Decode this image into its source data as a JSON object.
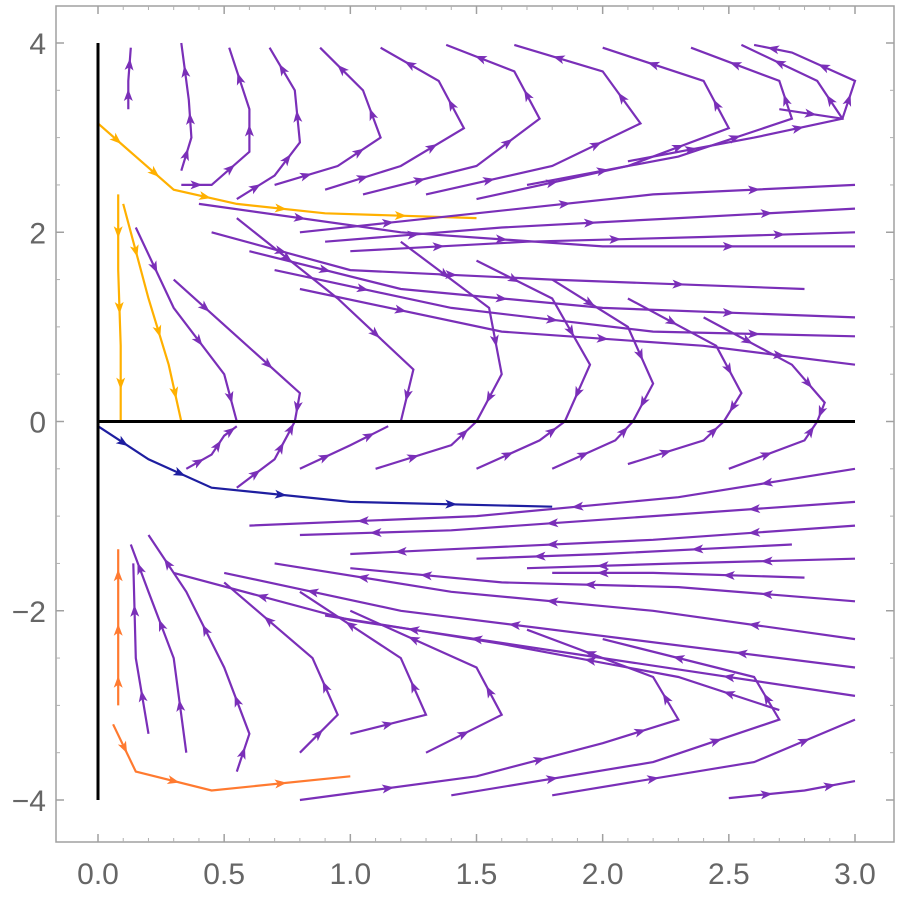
{
  "chart_data": {
    "type": "stream",
    "title": "",
    "xlabel": "",
    "ylabel": "",
    "xlim": [
      0,
      3
    ],
    "ylim": [
      -4,
      4
    ],
    "x_ticks": [
      "0.0",
      "0.5",
      "1.0",
      "1.5",
      "2.0",
      "2.5",
      "3.0"
    ],
    "y_ticks": [
      "-4",
      "-2",
      "0",
      "2",
      "4"
    ],
    "axes_lines": {
      "x_axis_at_y": 0,
      "y_axis_at_x": 0
    },
    "grid": false,
    "legend": "none",
    "colors": {
      "slow": "#1e1ea0",
      "medium": "#7a2fb8",
      "fast": "#ffb000"
    },
    "streamlines": [
      [
        [
          0.12,
          3.3
        ],
        [
          0.12,
          3.6
        ],
        [
          0.13,
          3.95
        ]
      ],
      [
        [
          0.0,
          3.15
        ],
        [
          0.15,
          2.8
        ],
        [
          0.3,
          2.45
        ],
        [
          0.55,
          2.3
        ],
        [
          0.9,
          2.2
        ],
        [
          1.5,
          2.15
        ]
      ],
      [
        [
          0.33,
          2.65
        ],
        [
          0.37,
          3.0
        ],
        [
          0.36,
          3.4
        ],
        [
          0.33,
          4.0
        ]
      ],
      [
        [
          0.33,
          2.5
        ],
        [
          0.45,
          2.5
        ],
        [
          0.6,
          2.85
        ],
        [
          0.6,
          3.3
        ],
        [
          0.52,
          3.95
        ]
      ],
      [
        [
          0.55,
          2.35
        ],
        [
          0.7,
          2.6
        ],
        [
          0.8,
          2.95
        ],
        [
          0.78,
          3.5
        ],
        [
          0.68,
          3.95
        ]
      ],
      [
        [
          0.7,
          2.5
        ],
        [
          0.95,
          2.7
        ],
        [
          1.12,
          3.0
        ],
        [
          1.05,
          3.5
        ],
        [
          0.88,
          3.95
        ]
      ],
      [
        [
          0.9,
          2.45
        ],
        [
          1.2,
          2.7
        ],
        [
          1.45,
          3.1
        ],
        [
          1.35,
          3.6
        ],
        [
          1.12,
          3.95
        ]
      ],
      [
        [
          1.05,
          2.4
        ],
        [
          1.5,
          2.7
        ],
        [
          1.75,
          3.2
        ],
        [
          1.65,
          3.7
        ],
        [
          1.38,
          3.98
        ]
      ],
      [
        [
          1.3,
          2.4
        ],
        [
          1.8,
          2.7
        ],
        [
          2.15,
          3.15
        ],
        [
          2.0,
          3.7
        ],
        [
          1.65,
          3.98
        ]
      ],
      [
        [
          1.5,
          2.35
        ],
        [
          2.1,
          2.7
        ],
        [
          2.5,
          3.1
        ],
        [
          2.4,
          3.6
        ],
        [
          2.0,
          3.95
        ]
      ],
      [
        [
          1.7,
          2.5
        ],
        [
          2.3,
          2.8
        ],
        [
          2.75,
          3.2
        ],
        [
          2.7,
          3.6
        ],
        [
          2.35,
          3.95
        ]
      ],
      [
        [
          2.1,
          2.75
        ],
        [
          2.6,
          3.0
        ],
        [
          2.95,
          3.2
        ],
        [
          2.85,
          3.6
        ],
        [
          2.55,
          3.98
        ]
      ],
      [
        [
          2.7,
          3.3
        ],
        [
          2.95,
          3.2
        ],
        [
          3.0,
          3.6
        ],
        [
          2.75,
          3.9
        ],
        [
          2.6,
          3.98
        ]
      ],
      [
        [
          0.8,
          2.0
        ],
        [
          1.5,
          2.2
        ],
        [
          2.2,
          2.4
        ],
        [
          3.0,
          2.5
        ]
      ],
      [
        [
          0.9,
          1.9
        ],
        [
          1.6,
          2.05
        ],
        [
          2.3,
          2.15
        ],
        [
          3.0,
          2.25
        ]
      ],
      [
        [
          1.0,
          1.8
        ],
        [
          1.7,
          1.9
        ],
        [
          2.4,
          1.95
        ],
        [
          3.0,
          2.0
        ]
      ],
      [
        [
          0.4,
          2.3
        ],
        [
          1.2,
          2.0
        ],
        [
          2.0,
          1.85
        ],
        [
          3.0,
          1.85
        ]
      ],
      [
        [
          0.45,
          2.0
        ],
        [
          1.0,
          1.6
        ],
        [
          1.8,
          1.5
        ],
        [
          2.8,
          1.4
        ]
      ],
      [
        [
          0.6,
          1.8
        ],
        [
          1.2,
          1.4
        ],
        [
          2.0,
          1.2
        ],
        [
          3.0,
          1.1
        ]
      ],
      [
        [
          0.7,
          1.6
        ],
        [
          1.4,
          1.2
        ],
        [
          2.2,
          0.95
        ],
        [
          3.0,
          0.9
        ]
      ],
      [
        [
          0.8,
          1.4
        ],
        [
          1.6,
          0.95
        ],
        [
          2.4,
          0.8
        ],
        [
          3.0,
          0.6
        ]
      ],
      [
        [
          0.55,
          2.15
        ],
        [
          0.95,
          1.3
        ],
        [
          1.25,
          0.55
        ],
        [
          1.2,
          0.0
        ]
      ],
      [
        [
          0.3,
          1.5
        ],
        [
          0.55,
          0.9
        ],
        [
          0.8,
          0.3
        ],
        [
          0.78,
          0.0
        ]
      ],
      [
        [
          0.15,
          2.05
        ],
        [
          0.3,
          1.2
        ],
        [
          0.5,
          0.5
        ],
        [
          0.55,
          0.0
        ]
      ],
      [
        [
          0.1,
          2.3
        ],
        [
          0.2,
          1.3
        ],
        [
          0.28,
          0.6
        ],
        [
          0.33,
          0.0
        ]
      ],
      [
        [
          0.08,
          2.4
        ],
        [
          0.08,
          1.6
        ],
        [
          0.09,
          0.8
        ],
        [
          0.09,
          0.0
        ]
      ],
      [
        [
          1.5,
          1.7
        ],
        [
          1.8,
          1.3
        ],
        [
          1.95,
          0.6
        ],
        [
          1.85,
          0.0
        ]
      ],
      [
        [
          1.2,
          1.9
        ],
        [
          1.55,
          1.2
        ],
        [
          1.6,
          0.5
        ],
        [
          1.5,
          0.0
        ]
      ],
      [
        [
          1.8,
          1.5
        ],
        [
          2.1,
          1.0
        ],
        [
          2.2,
          0.4
        ],
        [
          2.12,
          0.0
        ]
      ],
      [
        [
          2.1,
          1.3
        ],
        [
          2.45,
          0.8
        ],
        [
          2.55,
          0.3
        ],
        [
          2.48,
          0.0
        ]
      ],
      [
        [
          2.4,
          1.1
        ],
        [
          2.75,
          0.6
        ],
        [
          2.88,
          0.2
        ],
        [
          2.85,
          0.0
        ]
      ],
      [
        [
          0.0,
          -0.05
        ],
        [
          0.2,
          -0.4
        ],
        [
          0.45,
          -0.7
        ],
        [
          1.0,
          -0.85
        ],
        [
          1.8,
          -0.9
        ]
      ],
      [
        [
          0.35,
          -0.5
        ],
        [
          0.45,
          -0.35
        ],
        [
          0.5,
          -0.15
        ],
        [
          0.55,
          -0.05
        ]
      ],
      [
        [
          0.55,
          -0.7
        ],
        [
          0.7,
          -0.4
        ],
        [
          0.75,
          -0.15
        ],
        [
          0.78,
          0.0
        ]
      ],
      [
        [
          0.8,
          -0.5
        ],
        [
          1.0,
          -0.25
        ],
        [
          1.15,
          -0.05
        ]
      ],
      [
        [
          1.1,
          -0.5
        ],
        [
          1.4,
          -0.25
        ],
        [
          1.5,
          0.0
        ]
      ],
      [
        [
          1.5,
          -0.5
        ],
        [
          1.75,
          -0.2
        ],
        [
          1.85,
          0.0
        ]
      ],
      [
        [
          1.8,
          -0.5
        ],
        [
          2.05,
          -0.2
        ],
        [
          2.12,
          0.0
        ]
      ],
      [
        [
          2.1,
          -0.45
        ],
        [
          2.4,
          -0.2
        ],
        [
          2.48,
          0.0
        ]
      ],
      [
        [
          2.5,
          -0.5
        ],
        [
          2.8,
          -0.2
        ],
        [
          2.85,
          0.0
        ]
      ],
      [
        [
          3.0,
          -0.5
        ],
        [
          2.3,
          -0.8
        ],
        [
          1.5,
          -1.0
        ],
        [
          0.6,
          -1.1
        ]
      ],
      [
        [
          3.0,
          -0.85
        ],
        [
          2.2,
          -1.0
        ],
        [
          1.4,
          -1.15
        ],
        [
          0.8,
          -1.2
        ]
      ],
      [
        [
          3.0,
          -1.1
        ],
        [
          2.2,
          -1.25
        ],
        [
          1.4,
          -1.35
        ],
        [
          1.0,
          -1.4
        ]
      ],
      [
        [
          2.75,
          -1.3
        ],
        [
          2.0,
          -1.4
        ],
        [
          1.5,
          -1.45
        ]
      ],
      [
        [
          3.0,
          -1.45
        ],
        [
          2.3,
          -1.5
        ],
        [
          1.7,
          -1.55
        ]
      ],
      [
        [
          2.8,
          -1.65
        ],
        [
          2.2,
          -1.6
        ],
        [
          1.8,
          -1.6
        ]
      ],
      [
        [
          3.0,
          -1.9
        ],
        [
          2.3,
          -1.75
        ],
        [
          1.6,
          -1.7
        ],
        [
          1.0,
          -1.55
        ]
      ],
      [
        [
          3.0,
          -2.3
        ],
        [
          2.2,
          -2.0
        ],
        [
          1.4,
          -1.8
        ],
        [
          0.7,
          -1.5
        ]
      ],
      [
        [
          3.0,
          -2.6
        ],
        [
          2.1,
          -2.3
        ],
        [
          1.2,
          -2.0
        ],
        [
          0.5,
          -1.6
        ]
      ],
      [
        [
          3.0,
          -2.9
        ],
        [
          2.0,
          -2.5
        ],
        [
          1.0,
          -2.1
        ],
        [
          0.3,
          -1.6
        ]
      ],
      [
        [
          2.7,
          -3.05
        ],
        [
          2.3,
          -2.7
        ],
        [
          1.6,
          -2.35
        ],
        [
          0.9,
          -2.05
        ]
      ],
      [
        [
          0.06,
          -3.2
        ],
        [
          0.15,
          -3.7
        ],
        [
          0.45,
          -3.9
        ],
        [
          1.0,
          -3.75
        ]
      ],
      [
        [
          0.2,
          -3.3
        ],
        [
          0.15,
          -2.5
        ],
        [
          0.14,
          -1.5
        ]
      ],
      [
        [
          0.35,
          -3.5
        ],
        [
          0.3,
          -2.5
        ],
        [
          0.2,
          -1.8
        ],
        [
          0.13,
          -1.3
        ]
      ],
      [
        [
          0.55,
          -3.7
        ],
        [
          0.6,
          -3.3
        ],
        [
          0.5,
          -2.6
        ],
        [
          0.35,
          -1.8
        ],
        [
          0.2,
          -1.2
        ]
      ],
      [
        [
          0.8,
          -3.5
        ],
        [
          0.95,
          -3.1
        ],
        [
          0.85,
          -2.5
        ],
        [
          0.5,
          -1.7
        ]
      ],
      [
        [
          1.0,
          -3.3
        ],
        [
          1.3,
          -3.1
        ],
        [
          1.2,
          -2.5
        ],
        [
          0.8,
          -1.8
        ]
      ],
      [
        [
          1.3,
          -3.5
        ],
        [
          1.6,
          -3.1
        ],
        [
          1.5,
          -2.6
        ],
        [
          1.0,
          -2.0
        ]
      ],
      [
        [
          0.8,
          -4.0
        ],
        [
          1.5,
          -3.75
        ],
        [
          2.0,
          -3.4
        ],
        [
          2.3,
          -3.15
        ],
        [
          2.2,
          -2.7
        ],
        [
          1.7,
          -2.2
        ]
      ],
      [
        [
          1.4,
          -3.95
        ],
        [
          2.2,
          -3.6
        ],
        [
          2.7,
          -3.15
        ],
        [
          2.6,
          -2.7
        ],
        [
          2.0,
          -2.3
        ]
      ],
      [
        [
          1.8,
          -3.95
        ],
        [
          2.6,
          -3.6
        ],
        [
          3.0,
          -3.15
        ]
      ],
      [
        [
          2.5,
          -3.98
        ],
        [
          2.8,
          -3.9
        ],
        [
          3.0,
          -3.8
        ]
      ],
      [
        [
          0.08,
          -3.0
        ],
        [
          0.08,
          -2.5
        ],
        [
          0.08,
          -1.9
        ],
        [
          0.08,
          -1.35
        ]
      ]
    ]
  }
}
